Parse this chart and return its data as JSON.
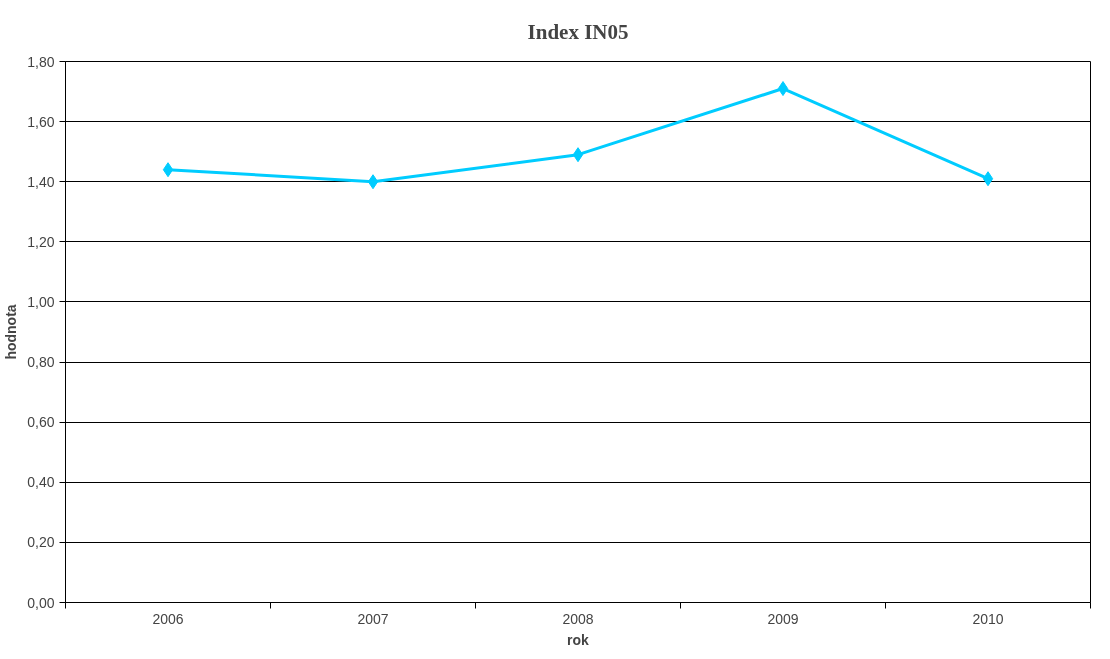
{
  "chart_data": {
    "type": "line",
    "title": "Index IN05",
    "xlabel": "rok",
    "ylabel": "hodnota",
    "categories": [
      "2006",
      "2007",
      "2008",
      "2009",
      "2010"
    ],
    "series": [
      {
        "color": "#00ccff",
        "values": [
          1.44,
          1.4,
          1.49,
          1.71,
          1.41
        ]
      }
    ],
    "ylim": [
      0,
      1.8
    ],
    "yticks": [
      {
        "value": 0,
        "label": "0,00"
      },
      {
        "value": 0.2,
        "label": "0,20"
      },
      {
        "value": 0.4,
        "label": "0,40"
      },
      {
        "value": 0.6,
        "label": "0,60"
      },
      {
        "value": 0.8,
        "label": "0,80"
      },
      {
        "value": 1.0,
        "label": "1,00"
      },
      {
        "value": 1.2,
        "label": "1,20"
      },
      {
        "value": 1.4,
        "label": "1,40"
      },
      {
        "value": 1.6,
        "label": "1,60"
      },
      {
        "value": 1.8,
        "label": "1,80"
      }
    ],
    "grid": "y",
    "marker": "diamond",
    "line_style": "solid"
  }
}
